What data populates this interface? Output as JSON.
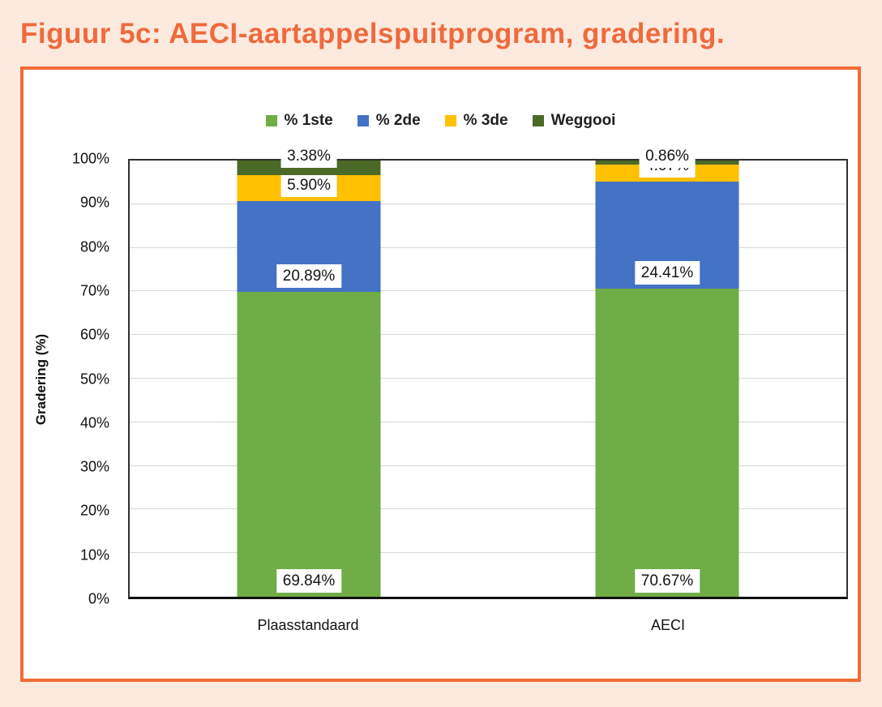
{
  "figure": {
    "title": "Figuur 5c: AECI-aartappelspuitprogram, gradering."
  },
  "colors": {
    "page_background": "#FCEADF",
    "panel_border": "#F26B35",
    "title_text": "#EF6A3D",
    "gridline": "#D9D9D9",
    "axis_line": "#303030",
    "series_1ste": "#70AD47",
    "series_2de": "#4472C4",
    "series_3de": "#FFC000",
    "series_weggooi": "#4C6A27"
  },
  "chart_data": {
    "type": "bar",
    "stacked": true,
    "title": "",
    "ylabel": "Gradering (%)",
    "xlabel": "",
    "ylim": [
      0,
      100
    ],
    "grid": true,
    "legend_position": "top",
    "categories": [
      "Plaasstandaard",
      "AECI"
    ],
    "category_centers_pct": [
      25,
      75
    ],
    "yticks": [
      "0%",
      "10%",
      "20%",
      "30%",
      "40%",
      "50%",
      "60%",
      "70%",
      "80%",
      "90%",
      "100%"
    ],
    "series": [
      {
        "name": "% 1ste",
        "color": "#70AD47",
        "values": [
          69.84,
          70.67
        ],
        "labels": [
          "69.84%",
          "70.67%"
        ]
      },
      {
        "name": "% 2de",
        "color": "#4472C4",
        "values": [
          20.89,
          24.41
        ],
        "labels": [
          "20.89%",
          "24.41%"
        ]
      },
      {
        "name": "% 3de",
        "color": "#FFC000",
        "values": [
          5.9,
          4.07
        ],
        "labels": [
          "5.90%",
          "4.07%"
        ]
      },
      {
        "name": "Weggooi",
        "color": "#4C6A27",
        "values": [
          3.38,
          0.86
        ],
        "labels": [
          "3.38%",
          "0.86%"
        ]
      }
    ]
  }
}
